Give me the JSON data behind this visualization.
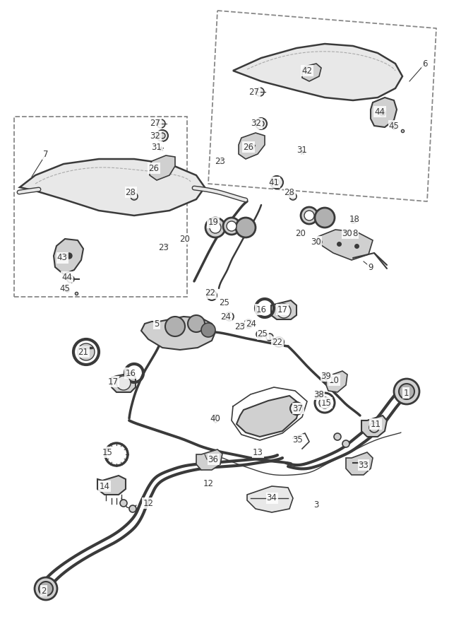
{
  "background_color": "#ffffff",
  "line_color": "#3a3a3a",
  "dashed_color": "#888888",
  "fill_light": "#e8e8e8",
  "fill_mid": "#d0d0d0",
  "fill_dark": "#b0b0b0",
  "fig_width": 6.36,
  "fig_height": 9.0,
  "dpi": 100,
  "parts": [
    [
      575,
      556,
      "1"
    ],
    [
      62,
      836,
      "2"
    ],
    [
      448,
      715,
      "3"
    ],
    [
      222,
      458,
      "5"
    ],
    [
      602,
      90,
      "6"
    ],
    [
      65,
      218,
      "7"
    ],
    [
      503,
      330,
      "8"
    ],
    [
      525,
      378,
      "9"
    ],
    [
      473,
      538,
      "10"
    ],
    [
      532,
      600,
      "11"
    ],
    [
      210,
      712,
      "12"
    ],
    [
      295,
      685,
      "12"
    ],
    [
      365,
      640,
      "13"
    ],
    [
      148,
      688,
      "14"
    ],
    [
      152,
      640,
      "15"
    ],
    [
      462,
      570,
      "15"
    ],
    [
      185,
      528,
      "16"
    ],
    [
      370,
      438,
      "16"
    ],
    [
      160,
      540,
      "17"
    ],
    [
      400,
      438,
      "17"
    ],
    [
      502,
      310,
      "18"
    ],
    [
      302,
      315,
      "19"
    ],
    [
      262,
      338,
      "20"
    ],
    [
      426,
      330,
      "20"
    ],
    [
      118,
      498,
      "21"
    ],
    [
      298,
      415,
      "22"
    ],
    [
      393,
      484,
      "22"
    ],
    [
      232,
      350,
      "23"
    ],
    [
      340,
      463,
      "23"
    ],
    [
      312,
      228,
      "23"
    ],
    [
      320,
      448,
      "24"
    ],
    [
      356,
      458,
      "24"
    ],
    [
      318,
      428,
      "25"
    ],
    [
      372,
      473,
      "25"
    ],
    [
      218,
      238,
      "26"
    ],
    [
      352,
      208,
      "26"
    ],
    [
      220,
      175,
      "27"
    ],
    [
      360,
      130,
      "27"
    ],
    [
      185,
      272,
      "28"
    ],
    [
      410,
      272,
      "28"
    ],
    [
      448,
      342,
      "30"
    ],
    [
      492,
      330,
      "30"
    ],
    [
      222,
      208,
      "31"
    ],
    [
      428,
      213,
      "31"
    ],
    [
      220,
      193,
      "32"
    ],
    [
      363,
      175,
      "32"
    ],
    [
      515,
      658,
      "33"
    ],
    [
      385,
      705,
      "34"
    ],
    [
      422,
      622,
      "35"
    ],
    [
      302,
      650,
      "36"
    ],
    [
      422,
      578,
      "37"
    ],
    [
      452,
      558,
      "38"
    ],
    [
      462,
      532,
      "39"
    ],
    [
      305,
      592,
      "40"
    ],
    [
      388,
      258,
      "41"
    ],
    [
      435,
      100,
      "42"
    ],
    [
      88,
      365,
      "43"
    ],
    [
      95,
      392,
      "44"
    ],
    [
      538,
      158,
      "44"
    ],
    [
      92,
      408,
      "45"
    ],
    [
      558,
      178,
      "45"
    ]
  ]
}
